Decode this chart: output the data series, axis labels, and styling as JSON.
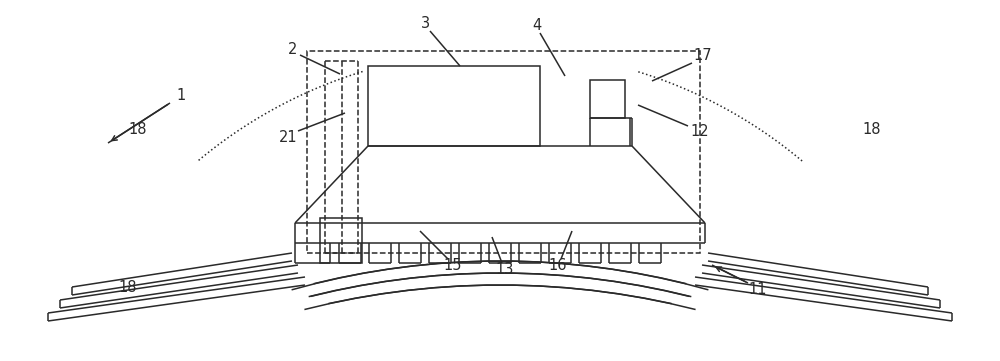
{
  "fig_width": 10.0,
  "fig_height": 3.61,
  "dpi": 100,
  "bg_color": "#ffffff",
  "lc": "#2a2a2a",
  "lw": 1.1,
  "fs": 10.5
}
